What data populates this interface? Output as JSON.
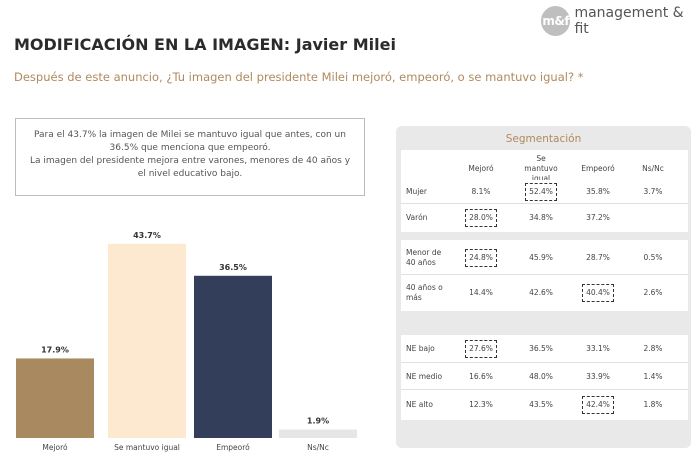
{
  "brand": {
    "monogram": "m&f",
    "name": "management & fit"
  },
  "title": "MODIFICACIÓN EN LA IMAGEN: Javier Milei",
  "subtitle": "Después de este anuncio, ¿Tu imagen del presidente Milei mejoró, empeoró, o se mantuvo igual? *",
  "summary": {
    "line1": "Para el 43.7% la imagen de Milei se mantuvo igual que antes, con un 36.5% que menciona que empeoró.",
    "line2": "La imagen del presidente mejora entre varones, menores de 40 años y el nivel educativo bajo."
  },
  "chart_data": {
    "type": "bar",
    "categories": [
      "Mejoró",
      "Se mantuvo igual",
      "Empeoró",
      "Ns/Nc"
    ],
    "values": [
      17.9,
      43.7,
      36.5,
      1.9
    ],
    "value_labels": [
      "17.9%",
      "43.7%",
      "36.5%",
      "1.9%"
    ],
    "colors": [
      "#a98a60",
      "#fde9cf",
      "#323e5a",
      "#e6e6e6"
    ],
    "ylim": [
      0,
      45
    ],
    "grid": false,
    "legend": "none"
  },
  "segmentation": {
    "title": "Segmentación",
    "columns": [
      "Mejoró",
      "Se mantuvo igual",
      "Empeoró",
      "Ns/Nc"
    ],
    "groups": [
      {
        "rows": [
          {
            "label": "Mujer",
            "values": [
              "8.1%",
              "52.4%",
              "35.8%",
              "3.7%"
            ],
            "highlight": 1
          },
          {
            "label": "Varón",
            "values": [
              "28.0%",
              "34.8%",
              "37.2%",
              ""
            ],
            "highlight": 0
          }
        ]
      },
      {
        "rows": [
          {
            "label": "Menor de 40 años",
            "values": [
              "24.8%",
              "45.9%",
              "28.7%",
              "0.5%"
            ],
            "highlight": 0
          },
          {
            "label": "40 años o más",
            "values": [
              "14.4%",
              "42.6%",
              "40.4%",
              "2.6%"
            ],
            "highlight": 2
          }
        ]
      },
      {
        "rows": [
          {
            "label": "NE bajo",
            "values": [
              "27.6%",
              "36.5%",
              "33.1%",
              "2.8%"
            ],
            "highlight": 0
          },
          {
            "label": "NE medio",
            "values": [
              "16.6%",
              "48.0%",
              "33.9%",
              "1.4%"
            ],
            "highlight": -1
          },
          {
            "label": "NE alto",
            "values": [
              "12.3%",
              "43.5%",
              "42.4%",
              "1.8%"
            ],
            "highlight": 2
          }
        ]
      }
    ]
  }
}
